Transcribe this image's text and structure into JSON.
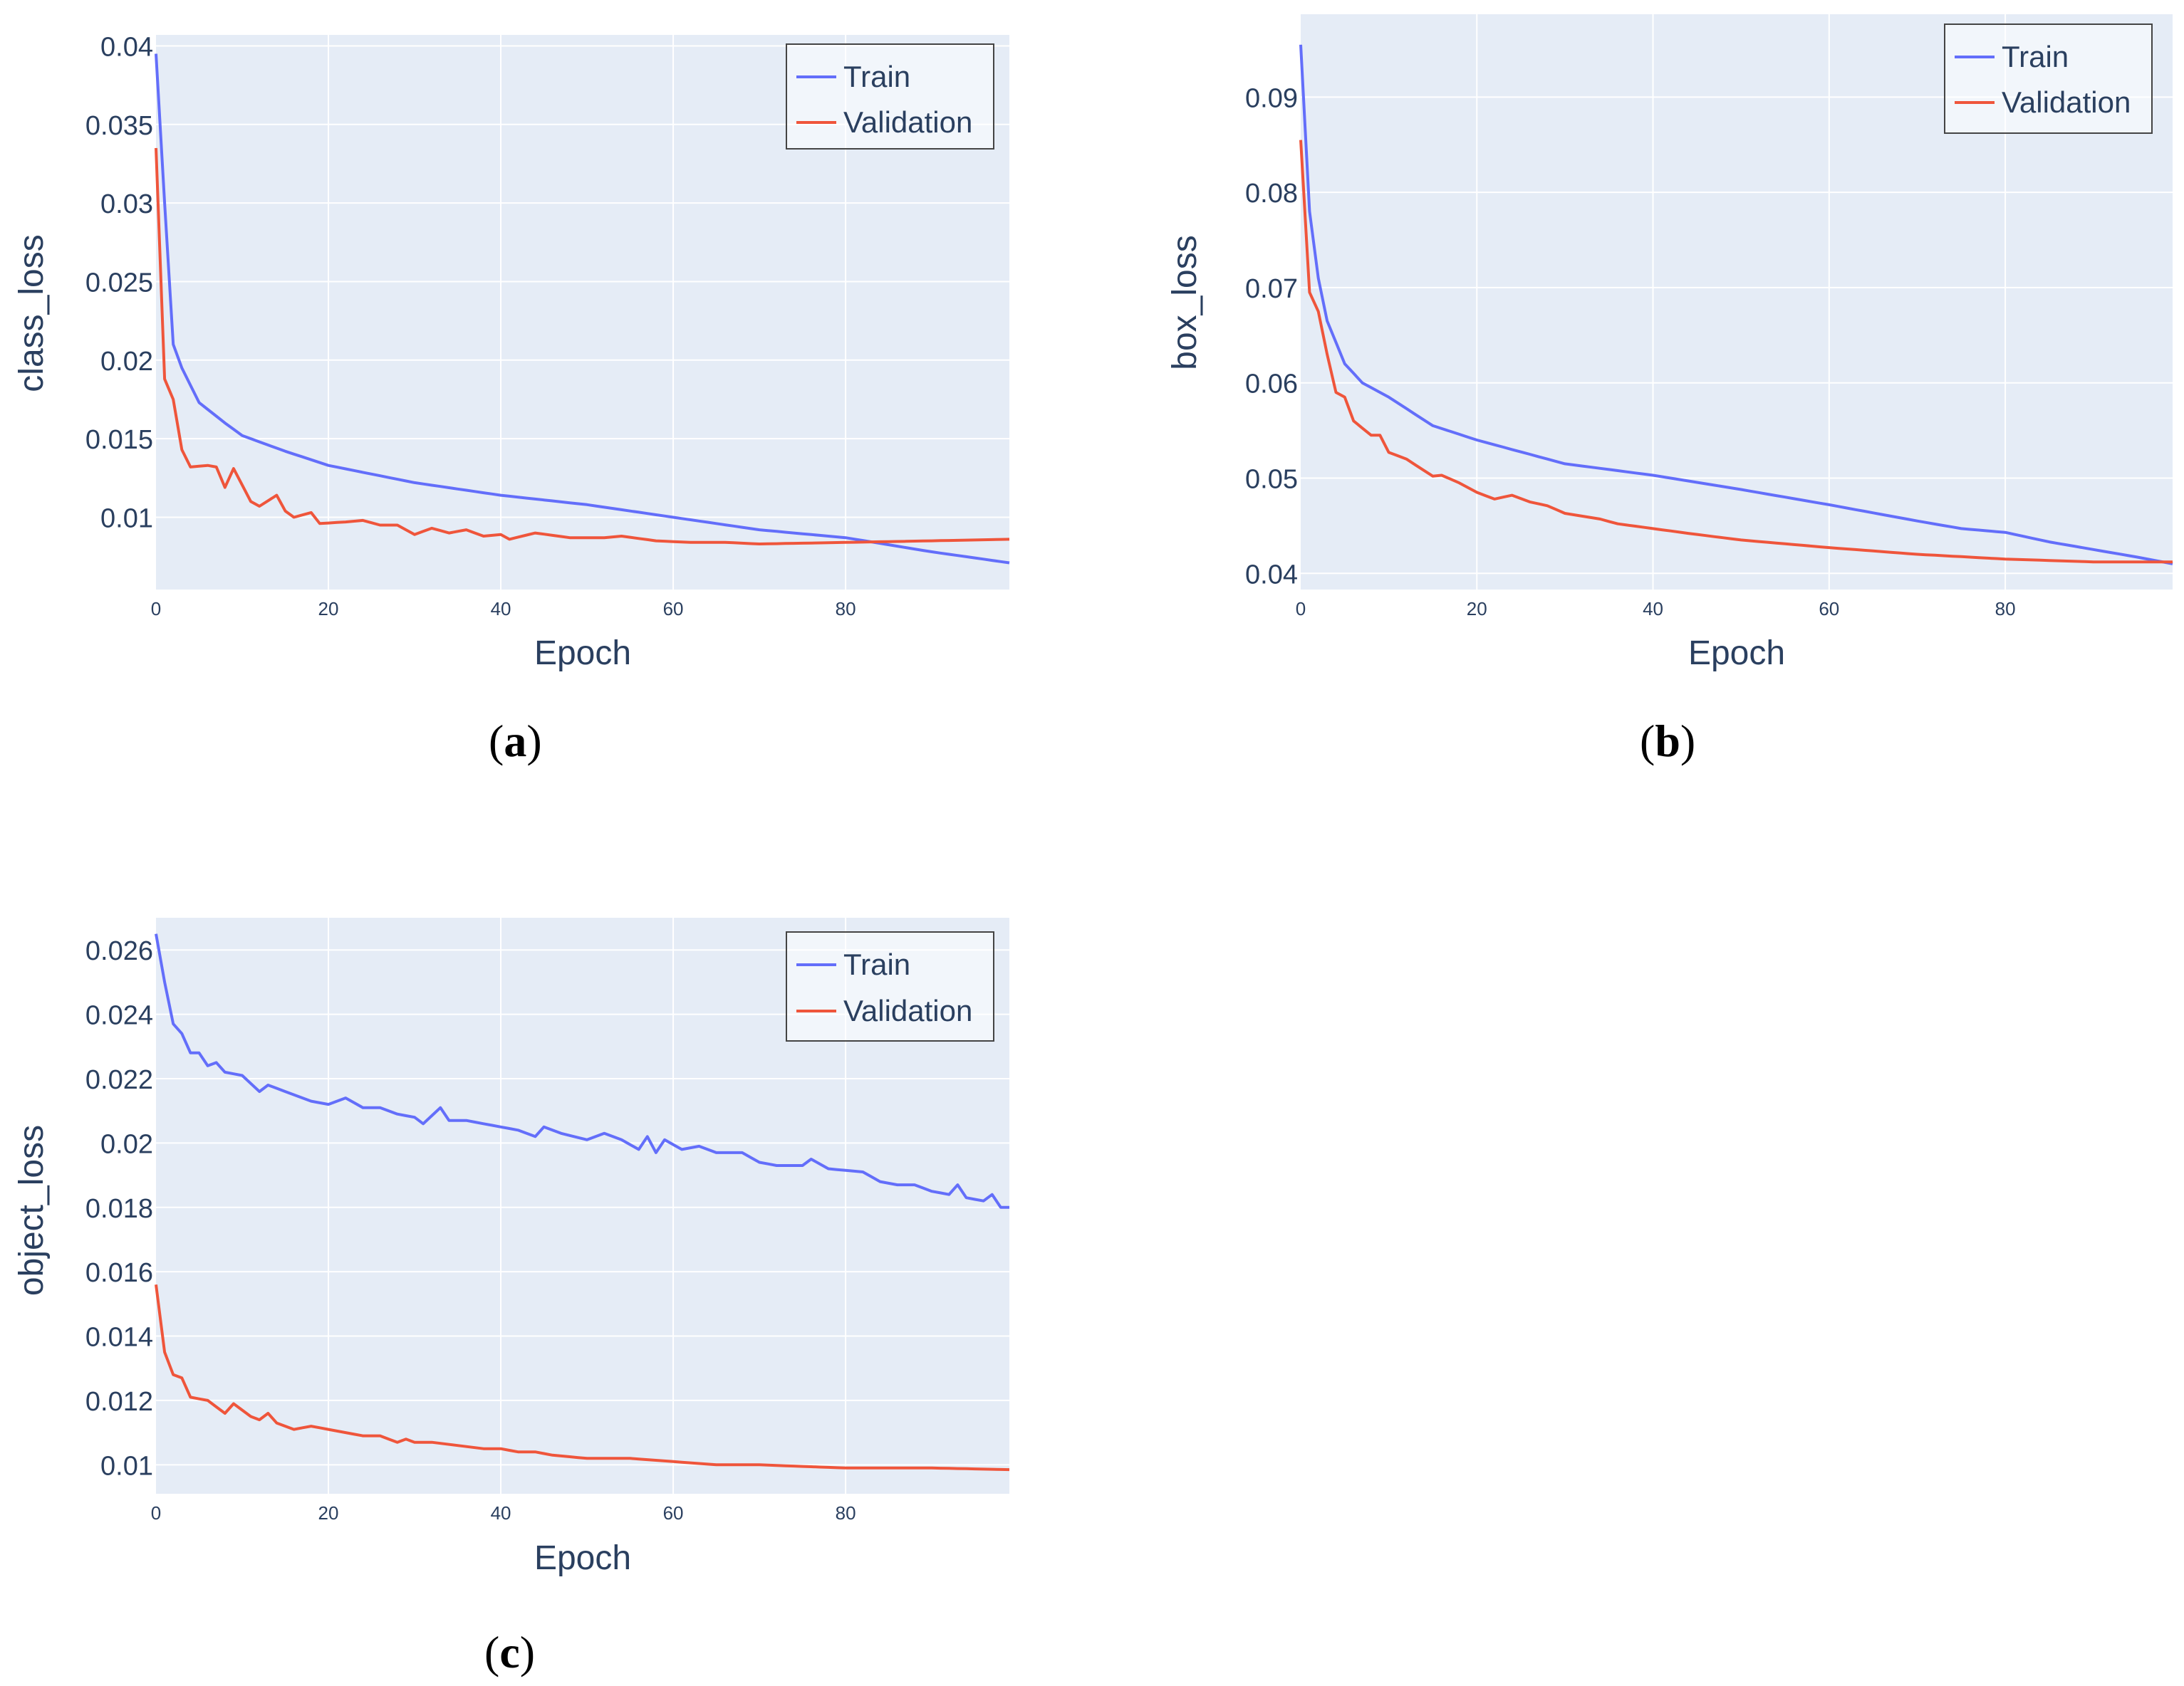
{
  "chart_data": [
    {
      "id": "a",
      "type": "line",
      "caption": "a",
      "xlabel": "Epoch",
      "ylabel": "class_loss",
      "xlim": [
        0,
        99
      ],
      "ylim": [
        0.0054,
        0.0407
      ],
      "xticks": [
        0,
        20,
        40,
        60,
        80
      ],
      "yticks": [
        0.01,
        0.015,
        0.02,
        0.025,
        0.03,
        0.035,
        0.04
      ],
      "ytick_labels": [
        "0.01",
        "0.015",
        "0.02",
        "0.025",
        "0.03",
        "0.035",
        "0.04"
      ],
      "legend": "top-right",
      "series": [
        {
          "name": "Train",
          "color": "#636efa",
          "knots": [
            [
              0,
              0.0395
            ],
            [
              1,
              0.03
            ],
            [
              2,
              0.021
            ],
            [
              3,
              0.0195
            ],
            [
              5,
              0.0173
            ],
            [
              8,
              0.016
            ],
            [
              10,
              0.0152
            ],
            [
              15,
              0.0142
            ],
            [
              20,
              0.0133
            ],
            [
              30,
              0.0122
            ],
            [
              40,
              0.0114
            ],
            [
              50,
              0.0108
            ],
            [
              60,
              0.01
            ],
            [
              70,
              0.0092
            ],
            [
              80,
              0.0087
            ],
            [
              90,
              0.0078
            ],
            [
              99,
              0.0071
            ]
          ]
        },
        {
          "name": "Validation",
          "color": "#ef553b",
          "knots": [
            [
              0,
              0.0335
            ],
            [
              1,
              0.0188
            ],
            [
              2,
              0.0175
            ],
            [
              3,
              0.0143
            ],
            [
              4,
              0.0132
            ],
            [
              6,
              0.0133
            ],
            [
              7,
              0.0132
            ],
            [
              8,
              0.0119
            ],
            [
              9,
              0.0131
            ],
            [
              11,
              0.011
            ],
            [
              12,
              0.0107
            ],
            [
              14,
              0.0114
            ],
            [
              15,
              0.0104
            ],
            [
              16,
              0.01
            ],
            [
              18,
              0.0103
            ],
            [
              19,
              0.0096
            ],
            [
              22,
              0.0097
            ],
            [
              24,
              0.0098
            ],
            [
              26,
              0.0095
            ],
            [
              28,
              0.0095
            ],
            [
              30,
              0.0089
            ],
            [
              32,
              0.0093
            ],
            [
              34,
              0.009
            ],
            [
              36,
              0.0092
            ],
            [
              38,
              0.0088
            ],
            [
              40,
              0.0089
            ],
            [
              41,
              0.0086
            ],
            [
              44,
              0.009
            ],
            [
              48,
              0.0087
            ],
            [
              52,
              0.0087
            ],
            [
              54,
              0.0088
            ],
            [
              58,
              0.0085
            ],
            [
              62,
              0.0084
            ],
            [
              66,
              0.0084
            ],
            [
              70,
              0.0083
            ],
            [
              80,
              0.0084
            ],
            [
              90,
              0.0085
            ],
            [
              99,
              0.0086
            ]
          ]
        }
      ]
    },
    {
      "id": "b",
      "type": "line",
      "caption": "b",
      "xlabel": "Epoch",
      "ylabel": "box_loss",
      "xlim": [
        0,
        99
      ],
      "ylim": [
        0.0383,
        0.0987
      ],
      "xticks": [
        0,
        20,
        40,
        60,
        80
      ],
      "yticks": [
        0.04,
        0.05,
        0.06,
        0.07,
        0.08,
        0.09
      ],
      "ytick_labels": [
        "0.04",
        "0.05",
        "0.06",
        "0.07",
        "0.08",
        "0.09"
      ],
      "legend": "top-right",
      "series": [
        {
          "name": "Train",
          "color": "#636efa",
          "knots": [
            [
              0,
              0.0955
            ],
            [
              1,
              0.078
            ],
            [
              2,
              0.071
            ],
            [
              3,
              0.0665
            ],
            [
              5,
              0.062
            ],
            [
              7,
              0.06
            ],
            [
              10,
              0.0585
            ],
            [
              15,
              0.0555
            ],
            [
              20,
              0.054
            ],
            [
              30,
              0.0515
            ],
            [
              40,
              0.0503
            ],
            [
              50,
              0.0488
            ],
            [
              60,
              0.0472
            ],
            [
              70,
              0.0455
            ],
            [
              75,
              0.0447
            ],
            [
              80,
              0.0443
            ],
            [
              85,
              0.0433
            ],
            [
              90,
              0.0425
            ],
            [
              95,
              0.0417
            ],
            [
              99,
              0.041
            ]
          ]
        },
        {
          "name": "Validation",
          "color": "#ef553b",
          "knots": [
            [
              0,
              0.0855
            ],
            [
              1,
              0.0695
            ],
            [
              2,
              0.0675
            ],
            [
              3,
              0.063
            ],
            [
              4,
              0.059
            ],
            [
              5,
              0.0585
            ],
            [
              6,
              0.056
            ],
            [
              8,
              0.0545
            ],
            [
              9,
              0.0545
            ],
            [
              10,
              0.0527
            ],
            [
              12,
              0.052
            ],
            [
              15,
              0.0502
            ],
            [
              16,
              0.0503
            ],
            [
              18,
              0.0495
            ],
            [
              20,
              0.0485
            ],
            [
              22,
              0.0478
            ],
            [
              24,
              0.0482
            ],
            [
              26,
              0.0475
            ],
            [
              28,
              0.0471
            ],
            [
              30,
              0.0463
            ],
            [
              34,
              0.0457
            ],
            [
              36,
              0.0452
            ],
            [
              40,
              0.0447
            ],
            [
              44,
              0.0442
            ],
            [
              50,
              0.0435
            ],
            [
              60,
              0.0427
            ],
            [
              70,
              0.042
            ],
            [
              80,
              0.0415
            ],
            [
              90,
              0.0412
            ],
            [
              99,
              0.0412
            ]
          ]
        }
      ]
    },
    {
      "id": "c",
      "type": "line",
      "caption": "c",
      "xlabel": "Epoch",
      "ylabel": "object_loss",
      "xlim": [
        0,
        99
      ],
      "ylim": [
        0.0091,
        0.027
      ],
      "xticks": [
        0,
        20,
        40,
        60,
        80
      ],
      "yticks": [
        0.01,
        0.012,
        0.014,
        0.016,
        0.018,
        0.02,
        0.022,
        0.024,
        0.026
      ],
      "ytick_labels": [
        "0.01",
        "0.012",
        "0.014",
        "0.016",
        "0.018",
        "0.02",
        "0.022",
        "0.024",
        "0.026"
      ],
      "legend": "top-right",
      "series": [
        {
          "name": "Train",
          "color": "#636efa",
          "knots": [
            [
              0,
              0.0265
            ],
            [
              1,
              0.025
            ],
            [
              2,
              0.0237
            ],
            [
              3,
              0.0234
            ],
            [
              4,
              0.0228
            ],
            [
              5,
              0.0228
            ],
            [
              6,
              0.0224
            ],
            [
              7,
              0.0225
            ],
            [
              8,
              0.0222
            ],
            [
              10,
              0.0221
            ],
            [
              12,
              0.0216
            ],
            [
              13,
              0.0218
            ],
            [
              16,
              0.0215
            ],
            [
              18,
              0.0213
            ],
            [
              20,
              0.0212
            ],
            [
              22,
              0.0214
            ],
            [
              24,
              0.0211
            ],
            [
              26,
              0.0211
            ],
            [
              28,
              0.0209
            ],
            [
              30,
              0.0208
            ],
            [
              31,
              0.0206
            ],
            [
              33,
              0.0211
            ],
            [
              34,
              0.0207
            ],
            [
              36,
              0.0207
            ],
            [
              40,
              0.0205
            ],
            [
              42,
              0.0204
            ],
            [
              44,
              0.0202
            ],
            [
              45,
              0.0205
            ],
            [
              47,
              0.0203
            ],
            [
              50,
              0.0201
            ],
            [
              52,
              0.0203
            ],
            [
              54,
              0.0201
            ],
            [
              56,
              0.0198
            ],
            [
              57,
              0.0202
            ],
            [
              58,
              0.0197
            ],
            [
              59,
              0.0201
            ],
            [
              61,
              0.0198
            ],
            [
              63,
              0.0199
            ],
            [
              65,
              0.0197
            ],
            [
              68,
              0.0197
            ],
            [
              70,
              0.0194
            ],
            [
              72,
              0.0193
            ],
            [
              75,
              0.0193
            ],
            [
              76,
              0.0195
            ],
            [
              78,
              0.0192
            ],
            [
              82,
              0.0191
            ],
            [
              84,
              0.0188
            ],
            [
              86,
              0.0187
            ],
            [
              88,
              0.0187
            ],
            [
              90,
              0.0185
            ],
            [
              92,
              0.0184
            ],
            [
              93,
              0.0187
            ],
            [
              94,
              0.0183
            ],
            [
              96,
              0.0182
            ],
            [
              97,
              0.0184
            ],
            [
              98,
              0.018
            ],
            [
              99,
              0.018
            ]
          ]
        },
        {
          "name": "Validation",
          "color": "#ef553b",
          "knots": [
            [
              0,
              0.0156
            ],
            [
              1,
              0.0135
            ],
            [
              2,
              0.0128
            ],
            [
              3,
              0.0127
            ],
            [
              4,
              0.0121
            ],
            [
              6,
              0.012
            ],
            [
              7,
              0.0118
            ],
            [
              8,
              0.0116
            ],
            [
              9,
              0.0119
            ],
            [
              10,
              0.0117
            ],
            [
              11,
              0.0115
            ],
            [
              12,
              0.0114
            ],
            [
              13,
              0.0116
            ],
            [
              14,
              0.0113
            ],
            [
              16,
              0.0111
            ],
            [
              18,
              0.0112
            ],
            [
              20,
              0.0111
            ],
            [
              22,
              0.011
            ],
            [
              24,
              0.0109
            ],
            [
              26,
              0.0109
            ],
            [
              28,
              0.0107
            ],
            [
              29,
              0.0108
            ],
            [
              30,
              0.0107
            ],
            [
              32,
              0.0107
            ],
            [
              35,
              0.0106
            ],
            [
              38,
              0.0105
            ],
            [
              40,
              0.0105
            ],
            [
              42,
              0.0104
            ],
            [
              44,
              0.0104
            ],
            [
              46,
              0.0103
            ],
            [
              50,
              0.0102
            ],
            [
              55,
              0.0102
            ],
            [
              60,
              0.0101
            ],
            [
              65,
              0.01
            ],
            [
              70,
              0.01
            ],
            [
              75,
              0.00995
            ],
            [
              80,
              0.0099
            ],
            [
              90,
              0.0099
            ],
            [
              99,
              0.00985
            ]
          ]
        }
      ]
    }
  ]
}
